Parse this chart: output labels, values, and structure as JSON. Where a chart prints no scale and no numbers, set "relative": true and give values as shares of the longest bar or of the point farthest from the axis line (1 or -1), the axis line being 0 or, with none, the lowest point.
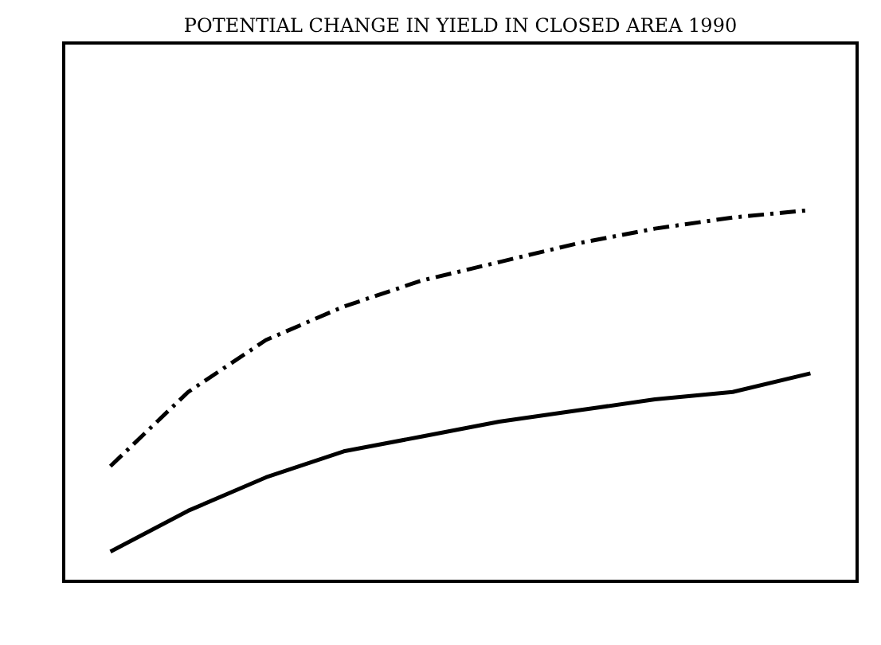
{
  "chart_data": {
    "type": "line",
    "title": "POTENTIAL CHANGE IN YIELD IN CLOSED AREA  1990",
    "relative": true,
    "categories": [
      null,
      null,
      null,
      null,
      null,
      null,
      null,
      null,
      null,
      null
    ],
    "series": [
      {
        "color": "#000000",
        "line_style": "dashed",
        "values": [
          0.31,
          0.51,
          0.65,
          0.74,
          0.81,
          0.86,
          0.91,
          0.95,
          0.98,
          1
        ]
      },
      {
        "color": "#000000",
        "line_style": "solid",
        "values": [
          0.08,
          0.19,
          0.28,
          0.35,
          0.39,
          0.43,
          0.46,
          0.49,
          0.51,
          0.56
        ]
      }
    ],
    "grid": false,
    "marker": "none"
  }
}
